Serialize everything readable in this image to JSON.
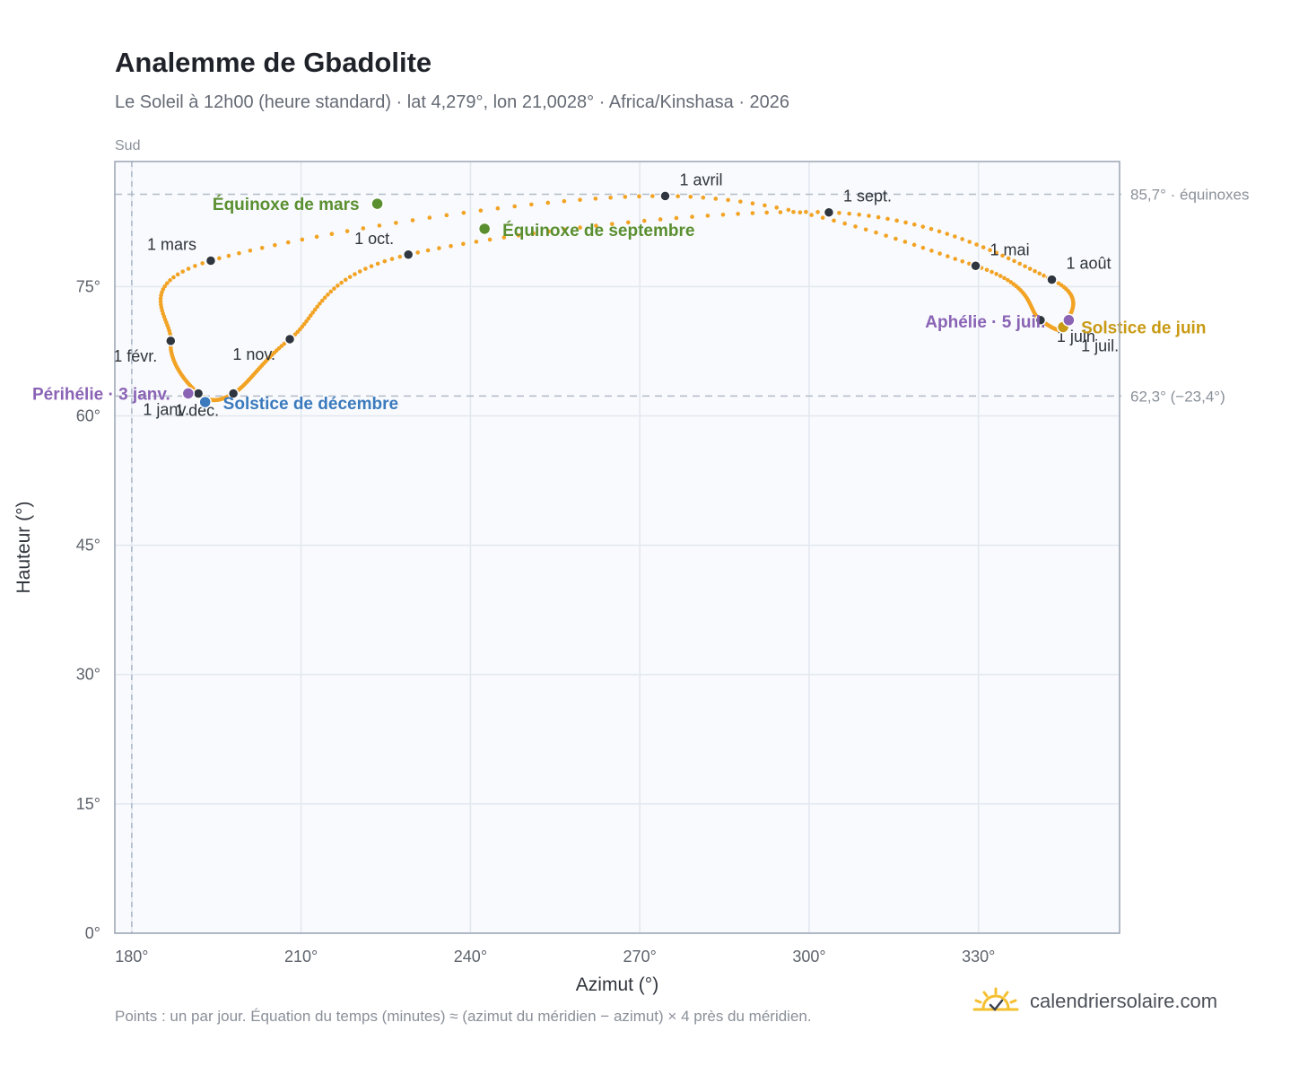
{
  "header": {
    "title": "Analemme de Gbadolite",
    "subtitle": "Le Soleil à 12h00 (heure standard) · lat 4,279°, lon 21,0028° · Africa/Kinshasa · 2026"
  },
  "footer": {
    "note": "Points : un par jour. Équation du temps (minutes) ≈ (azimut du méridien − azimut) × 4 près du méridien.",
    "brand": "calendriersolaire.com"
  },
  "colors": {
    "curve": "#f2a324",
    "month_marker": "#2f3640",
    "equinox": "#5a8f30",
    "december_solstice": "#3a7abd",
    "june_solstice": "#c99a14",
    "apsis": "#8a63b5",
    "grid": "#e3e8ef",
    "plot_bg": "#f8fafd",
    "frame": "#9aa4b2"
  },
  "chart_data": {
    "type": "scatter",
    "title": "Analemme de Gbadolite",
    "xlabel": "Azimut (°)",
    "ylabel": "Hauteur (°)",
    "xlim": [
      177,
      355
    ],
    "ylim": [
      0,
      89.5
    ],
    "x_ticks": [
      {
        "value": 180,
        "label": "180°"
      },
      {
        "value": 210,
        "label": "210°"
      },
      {
        "value": 240,
        "label": "240°"
      },
      {
        "value": 270,
        "label": "270°"
      },
      {
        "value": 300,
        "label": "300°"
      },
      {
        "value": 330,
        "label": "330°"
      }
    ],
    "y_ticks": [
      {
        "value": 0,
        "label": "0°"
      },
      {
        "value": 15,
        "label": "15°"
      },
      {
        "value": 30,
        "label": "30°"
      },
      {
        "value": 45,
        "label": "45°"
      },
      {
        "value": 60,
        "label": "60°"
      },
      {
        "value": 75,
        "label": "75°"
      }
    ],
    "south_line": {
      "x": 180,
      "label": "Sud"
    },
    "reference_lines": [
      {
        "y": 85.7,
        "label": "85,7° · équinoxes"
      },
      {
        "y": 62.3,
        "label": "62,3° (−23,4°)"
      }
    ],
    "monthly_points": [
      {
        "label": "1 janv.",
        "x": 191.8,
        "y": 62.6
      },
      {
        "label": "1 févr.",
        "x": 186.9,
        "y": 68.7
      },
      {
        "label": "1 mars",
        "x": 194.0,
        "y": 78.0
      },
      {
        "label": "1 avril",
        "x": 274.5,
        "y": 85.5
      },
      {
        "label": "1 mai",
        "x": 329.5,
        "y": 77.4
      },
      {
        "label": "1 juin",
        "x": 341.0,
        "y": 71.1
      },
      {
        "label": "1 juil.",
        "x": 345.0,
        "y": 70.4
      },
      {
        "label": "1 août",
        "x": 343.0,
        "y": 75.8
      },
      {
        "label": "1 sept.",
        "x": 303.5,
        "y": 83.6
      },
      {
        "label": "1 oct.",
        "x": 229.0,
        "y": 78.7
      },
      {
        "label": "1 nov.",
        "x": 208.0,
        "y": 68.9
      },
      {
        "label": "1 déc.",
        "x": 198.0,
        "y": 62.6
      }
    ],
    "events": [
      {
        "label": "Équinoxe de mars",
        "x": 223.5,
        "y": 84.6,
        "color_key": "equinox"
      },
      {
        "label": "Équinoxe de septembre",
        "x": 242.5,
        "y": 81.7,
        "color_key": "equinox"
      },
      {
        "label": "Solstice de juin",
        "x": 345.0,
        "y": 70.3,
        "color_key": "june_solstice"
      },
      {
        "label": "Solstice de décembre",
        "x": 193.0,
        "y": 61.6,
        "color_key": "december_solstice"
      },
      {
        "label": "Périhélie · 3 janv.",
        "x": 190.0,
        "y": 62.6,
        "color_key": "apsis"
      },
      {
        "label": "Aphélie · 5 juil.",
        "x": 346.0,
        "y": 71.1,
        "color_key": "apsis"
      }
    ]
  }
}
